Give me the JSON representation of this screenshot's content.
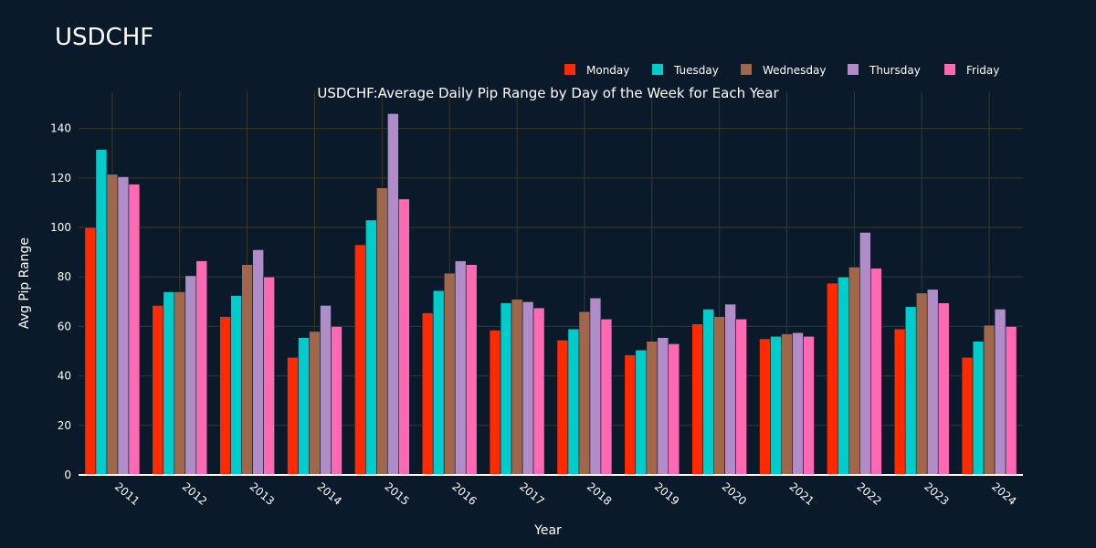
{
  "page": {
    "title": "USDCHF"
  },
  "chart_data": {
    "type": "bar",
    "title": "USDCHF:Average Daily Pip Range by Day of the Week for Each Year",
    "xlabel": "Year",
    "ylabel": "Avg Pip Range",
    "ylim": [
      0,
      155
    ],
    "yticks": [
      0,
      20,
      40,
      60,
      80,
      100,
      120,
      140
    ],
    "grid": true,
    "legend_position": "top-right",
    "categories": [
      "2011",
      "2012",
      "2013",
      "2014",
      "2015",
      "2016",
      "2017",
      "2018",
      "2019",
      "2020",
      "2021",
      "2022",
      "2023",
      "2024"
    ],
    "series": [
      {
        "name": "Monday",
        "color": "#ff2a00",
        "values": [
          100,
          68.5,
          64,
          47.5,
          93,
          65.5,
          58.5,
          54.5,
          48.5,
          61,
          55,
          77.5,
          59,
          47.5
        ]
      },
      {
        "name": "Tuesday",
        "color": "#00cccc",
        "values": [
          131.5,
          74,
          72.5,
          55.5,
          103,
          74.5,
          69.5,
          59,
          50.5,
          67,
          56,
          80,
          68,
          54
        ]
      },
      {
        "name": "Wednesday",
        "color": "#a0674a",
        "values": [
          121.5,
          74,
          85,
          58,
          116,
          81.5,
          71,
          66,
          54,
          64,
          57,
          84,
          73.5,
          60.5
        ]
      },
      {
        "name": "Thursday",
        "color": "#b08cc8",
        "values": [
          120.5,
          80.5,
          91,
          68.5,
          146,
          86.5,
          70,
          71.5,
          55.5,
          69,
          57.5,
          98,
          75,
          67
        ]
      },
      {
        "name": "Friday",
        "color": "#ff69b4",
        "values": [
          117.5,
          86.5,
          80,
          60,
          111.5,
          85,
          67.5,
          63,
          53,
          63,
          56,
          83.5,
          69.5,
          60
        ]
      }
    ]
  }
}
